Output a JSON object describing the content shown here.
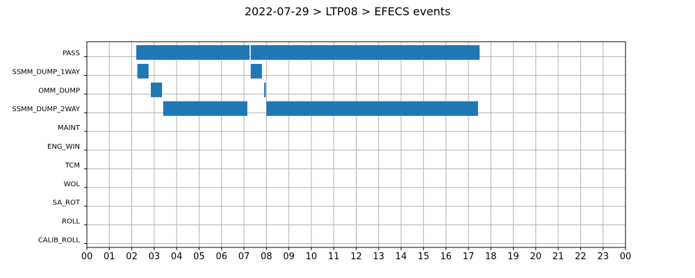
{
  "chart_data": {
    "type": "timeline",
    "title": "2022-07-29 > LTP08 > EFECS events",
    "categories": [
      "PASS",
      "SSMM_DUMP_1WAY",
      "OMM_DUMP",
      "SSMM_DUMP_2WAY",
      "MAINT",
      "ENG_WIN",
      "TCM",
      "WOL",
      "SA_ROT",
      "ROLL",
      "CALIB_ROLL"
    ],
    "x_ticks": [
      "00",
      "01",
      "02",
      "03",
      "04",
      "05",
      "06",
      "07",
      "08",
      "09",
      "10",
      "11",
      "12",
      "13",
      "14",
      "15",
      "16",
      "17",
      "18",
      "19",
      "20",
      "21",
      "22",
      "23",
      "00"
    ],
    "xlim": [
      0,
      24
    ],
    "grid": true,
    "bar_color": "#1f77b4",
    "events": [
      {
        "category": "PASS",
        "start": 2.2,
        "end": 7.25
      },
      {
        "category": "PASS",
        "start": 7.3,
        "end": 17.5
      },
      {
        "category": "SSMM_DUMP_1WAY",
        "start": 2.25,
        "end": 2.75
      },
      {
        "category": "SSMM_DUMP_1WAY",
        "start": 7.3,
        "end": 7.8
      },
      {
        "category": "OMM_DUMP",
        "start": 2.85,
        "end": 3.35
      },
      {
        "category": "OMM_DUMP",
        "start": 7.9,
        "end": 7.97
      },
      {
        "category": "SSMM_DUMP_2WAY",
        "start": 3.4,
        "end": 7.15
      },
      {
        "category": "SSMM_DUMP_2WAY",
        "start": 8.0,
        "end": 17.43
      }
    ]
  }
}
